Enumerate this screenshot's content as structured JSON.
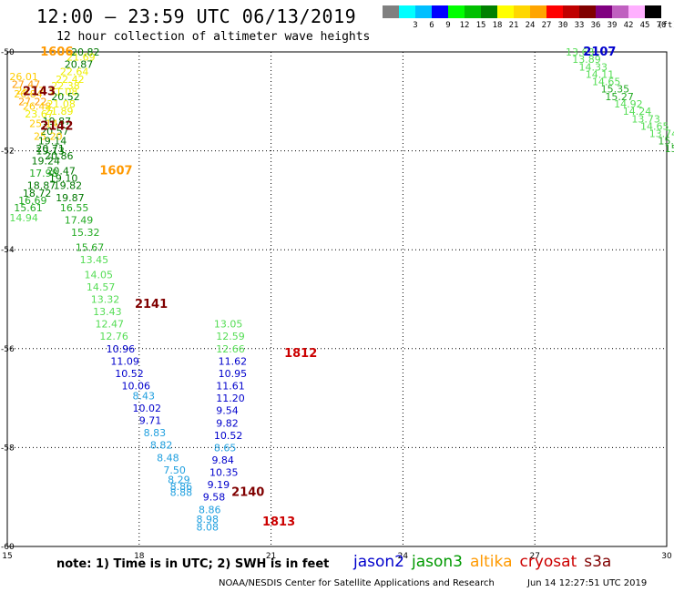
{
  "title": "12:00 – 23:59 UTC 06/13/2019",
  "subtitle": "12 hour collection of altimeter wave heights",
  "legend": {
    "unit": "(ft)",
    "items": [
      {
        "label": "",
        "color": "#808080"
      },
      {
        "label": "3",
        "color": "#00ffff"
      },
      {
        "label": "6",
        "color": "#00bfff"
      },
      {
        "label": "9",
        "color": "#0000ff"
      },
      {
        "label": "12",
        "color": "#00ff00"
      },
      {
        "label": "15",
        "color": "#00c000"
      },
      {
        "label": "18",
        "color": "#008000"
      },
      {
        "label": "21",
        "color": "#ffff00"
      },
      {
        "label": "24",
        "color": "#ffd700"
      },
      {
        "label": "27",
        "color": "#ffa500"
      },
      {
        "label": "30",
        "color": "#ff0000"
      },
      {
        "label": "33",
        "color": "#c00000"
      },
      {
        "label": "36",
        "color": "#800000"
      },
      {
        "label": "39",
        "color": "#800080"
      },
      {
        "label": "42",
        "color": "#c060c0"
      },
      {
        "label": "45",
        "color": "#ffb0ff"
      },
      {
        "label": "70",
        "color": "#000000"
      }
    ]
  },
  "map": {
    "lon_ticks": [
      "15",
      "18",
      "21",
      "24",
      "27",
      "30"
    ],
    "lat_ticks": [
      "-50",
      "-52",
      "-54",
      "-56",
      "-58",
      "-60"
    ],
    "lon_range": [
      15,
      30
    ],
    "lat_range": [
      -60,
      -50
    ],
    "colors": {
      "jason2": "#0000cc",
      "jason3": "#009900",
      "altika": "#ff9900",
      "cryosat": "#cc0000",
      "s3a": "#800000"
    },
    "pass_labels": [
      {
        "text": "1606",
        "sat": "altika",
        "lon": 15.75,
        "lat": -50.0
      },
      {
        "text": "2143",
        "sat": "s3a",
        "lon": 15.35,
        "lat": -50.8
      },
      {
        "text": "2142",
        "sat": "s3a",
        "lon": 15.75,
        "lat": -51.5
      },
      {
        "text": "1607",
        "sat": "altika",
        "lon": 17.1,
        "lat": -52.4
      },
      {
        "text": "2141",
        "sat": "s3a",
        "lon": 17.9,
        "lat": -55.1
      },
      {
        "text": "1812",
        "sat": "cryosat",
        "lon": 21.3,
        "lat": -56.1
      },
      {
        "text": "2140",
        "sat": "s3a",
        "lon": 20.1,
        "lat": -58.9
      },
      {
        "text": "1813",
        "sat": "cryosat",
        "lon": 20.8,
        "lat": -59.5
      },
      {
        "text": "2107",
        "sat": "jason2",
        "lon": 28.1,
        "lat": -50.0
      }
    ],
    "points": [
      {
        "v": "20.82",
        "lon": 16.45,
        "lat": -50.0
      },
      {
        "v": "21.69",
        "lon": 16.35,
        "lat": -50.1
      },
      {
        "v": "20.87",
        "lon": 16.3,
        "lat": -50.25
      },
      {
        "v": "22.64",
        "lon": 16.2,
        "lat": -50.4
      },
      {
        "v": "26.01",
        "lon": 15.05,
        "lat": -50.5
      },
      {
        "v": "22.42",
        "lon": 16.1,
        "lat": -50.55
      },
      {
        "v": "27.47",
        "lon": 15.1,
        "lat": -50.65
      },
      {
        "v": "22.38",
        "lon": 16.0,
        "lat": -50.68
      },
      {
        "v": "26.17",
        "lon": 15.2,
        "lat": -50.78
      },
      {
        "v": "21.08",
        "lon": 15.95,
        "lat": -50.8
      },
      {
        "v": "26.84",
        "lon": 15.15,
        "lat": -50.85
      },
      {
        "v": "20.52",
        "lon": 16.0,
        "lat": -50.9
      },
      {
        "v": "27.22",
        "lon": 15.25,
        "lat": -51.0
      },
      {
        "v": "21.08",
        "lon": 15.9,
        "lat": -51.05
      },
      {
        "v": "26.48",
        "lon": 15.35,
        "lat": -51.1
      },
      {
        "v": "21.89",
        "lon": 15.85,
        "lat": -51.2
      },
      {
        "v": "23.67",
        "lon": 15.4,
        "lat": -51.25
      },
      {
        "v": "19.87",
        "lon": 15.8,
        "lat": -51.4
      },
      {
        "v": "25.14",
        "lon": 15.5,
        "lat": -51.45
      },
      {
        "v": "20.57",
        "lon": 15.75,
        "lat": -51.6
      },
      {
        "v": "25.20",
        "lon": 15.6,
        "lat": -51.7
      },
      {
        "v": "19.14",
        "lon": 15.7,
        "lat": -51.8
      },
      {
        "v": "20.71",
        "lon": 15.65,
        "lat": -51.95
      },
      {
        "v": "19.13",
        "lon": 15.65,
        "lat": -52.0
      },
      {
        "v": "20.86",
        "lon": 15.85,
        "lat": -52.1
      },
      {
        "v": "19.24",
        "lon": 15.55,
        "lat": -52.2
      },
      {
        "v": "20.47",
        "lon": 15.9,
        "lat": -52.4
      },
      {
        "v": "17.98",
        "lon": 15.5,
        "lat": -52.45
      },
      {
        "v": "19.10",
        "lon": 15.95,
        "lat": -52.55
      },
      {
        "v": "18.87",
        "lon": 15.45,
        "lat": -52.7
      },
      {
        "v": "19.82",
        "lon": 16.05,
        "lat": -52.7
      },
      {
        "v": "18.72",
        "lon": 15.35,
        "lat": -52.85
      },
      {
        "v": "19.87",
        "lon": 16.1,
        "lat": -52.95
      },
      {
        "v": "16.69",
        "lon": 15.25,
        "lat": -53.0
      },
      {
        "v": "16.55",
        "lon": 16.2,
        "lat": -53.15
      },
      {
        "v": "15.61",
        "lon": 15.15,
        "lat": -53.15
      },
      {
        "v": "17.49",
        "lon": 16.3,
        "lat": -53.4
      },
      {
        "v": "14.94",
        "lon": 15.05,
        "lat": -53.35
      },
      {
        "v": "15.32",
        "lon": 16.45,
        "lat": -53.65
      },
      {
        "v": "15.67",
        "lon": 16.55,
        "lat": -53.95
      },
      {
        "v": "13.45",
        "lon": 16.65,
        "lat": -54.2
      },
      {
        "v": "14.05",
        "lon": 16.75,
        "lat": -54.5
      },
      {
        "v": "14.57",
        "lon": 16.8,
        "lat": -54.75
      },
      {
        "v": "13.32",
        "lon": 16.9,
        "lat": -55.0
      },
      {
        "v": "13.43",
        "lon": 16.95,
        "lat": -55.25
      },
      {
        "v": "12.47",
        "lon": 17.0,
        "lat": -55.5
      },
      {
        "v": "12.76",
        "lon": 17.1,
        "lat": -55.75
      },
      {
        "v": "10.96",
        "lon": 17.25,
        "lat": -56.0
      },
      {
        "v": "11.09",
        "lon": 17.35,
        "lat": -56.25
      },
      {
        "v": "10.52",
        "lon": 17.45,
        "lat": -56.5
      },
      {
        "v": "10.06",
        "lon": 17.6,
        "lat": -56.75
      },
      {
        "v": "8.43",
        "lon": 17.85,
        "lat": -56.95
      },
      {
        "v": "10.02",
        "lon": 17.85,
        "lat": -57.2
      },
      {
        "v": "9.71",
        "lon": 18.0,
        "lat": -57.45
      },
      {
        "v": "8.83",
        "lon": 18.1,
        "lat": -57.7
      },
      {
        "v": "8.82",
        "lon": 18.25,
        "lat": -57.95
      },
      {
        "v": "8.48",
        "lon": 18.4,
        "lat": -58.2
      },
      {
        "v": "7.50",
        "lon": 18.55,
        "lat": -58.45
      },
      {
        "v": "8.29",
        "lon": 18.65,
        "lat": -58.65
      },
      {
        "v": "8.86",
        "lon": 18.7,
        "lat": -58.78
      },
      {
        "v": "8.88",
        "lon": 18.7,
        "lat": -58.9
      },
      {
        "v": "13.05",
        "lon": 19.7,
        "lat": -55.5
      },
      {
        "v": "12.59",
        "lon": 19.75,
        "lat": -55.75
      },
      {
        "v": "12.66",
        "lon": 19.75,
        "lat": -56.0
      },
      {
        "v": "11.62",
        "lon": 19.8,
        "lat": -56.25
      },
      {
        "v": "10.95",
        "lon": 19.8,
        "lat": -56.5
      },
      {
        "v": "11.61",
        "lon": 19.75,
        "lat": -56.75
      },
      {
        "v": "11.20",
        "lon": 19.75,
        "lat": -57.0
      },
      {
        "v": "9.54",
        "lon": 19.75,
        "lat": -57.25
      },
      {
        "v": "9.82",
        "lon": 19.75,
        "lat": -57.5
      },
      {
        "v": "10.52",
        "lon": 19.7,
        "lat": -57.75
      },
      {
        "v": "8.65",
        "lon": 19.7,
        "lat": -58.0
      },
      {
        "v": "9.84",
        "lon": 19.65,
        "lat": -58.25
      },
      {
        "v": "10.35",
        "lon": 19.6,
        "lat": -58.5
      },
      {
        "v": "9.19",
        "lon": 19.55,
        "lat": -58.75
      },
      {
        "v": "9.58",
        "lon": 19.45,
        "lat": -59.0
      },
      {
        "v": "8.86",
        "lon": 19.35,
        "lat": -59.25
      },
      {
        "v": "8.98",
        "lon": 19.3,
        "lat": -59.45
      },
      {
        "v": "8.08",
        "lon": 19.3,
        "lat": -59.6
      },
      {
        "v": "13.63",
        "lon": 27.7,
        "lat": -50.0
      },
      {
        "v": "13.89",
        "lon": 27.85,
        "lat": -50.15
      },
      {
        "v": "14.33",
        "lon": 28.0,
        "lat": -50.3
      },
      {
        "v": "14.11",
        "lon": 28.15,
        "lat": -50.45
      },
      {
        "v": "14.65",
        "lon": 28.3,
        "lat": -50.6
      },
      {
        "v": "15.35",
        "lon": 28.5,
        "lat": -50.75
      },
      {
        "v": "15.27",
        "lon": 28.6,
        "lat": -50.9
      },
      {
        "v": "14.92",
        "lon": 28.8,
        "lat": -51.05
      },
      {
        "v": "14.24",
        "lon": 29.0,
        "lat": -51.2
      },
      {
        "v": "13.73",
        "lon": 29.2,
        "lat": -51.35
      },
      {
        "v": "14.65",
        "lon": 29.4,
        "lat": -51.5
      },
      {
        "v": "13.74",
        "lon": 29.6,
        "lat": -51.65
      },
      {
        "v": "15.1",
        "lon": 29.8,
        "lat": -51.8
      },
      {
        "v": "15",
        "lon": 29.95,
        "lat": -51.95
      }
    ]
  },
  "note": "note:  1) Time is in UTC;  2) SWH is in feet",
  "satellites": [
    {
      "name": "jason2",
      "color": "#0000cc"
    },
    {
      "name": "jason3",
      "color": "#009900"
    },
    {
      "name": "altika",
      "color": "#ff9900"
    },
    {
      "name": "cryosat",
      "color": "#cc0000"
    },
    {
      "name": "s3a",
      "color": "#800000"
    }
  ],
  "credit": "NOAA/NESDIS Center for Satellite Applications and Research",
  "timestamp": "Jun 14 12:27:51 UTC 2019"
}
